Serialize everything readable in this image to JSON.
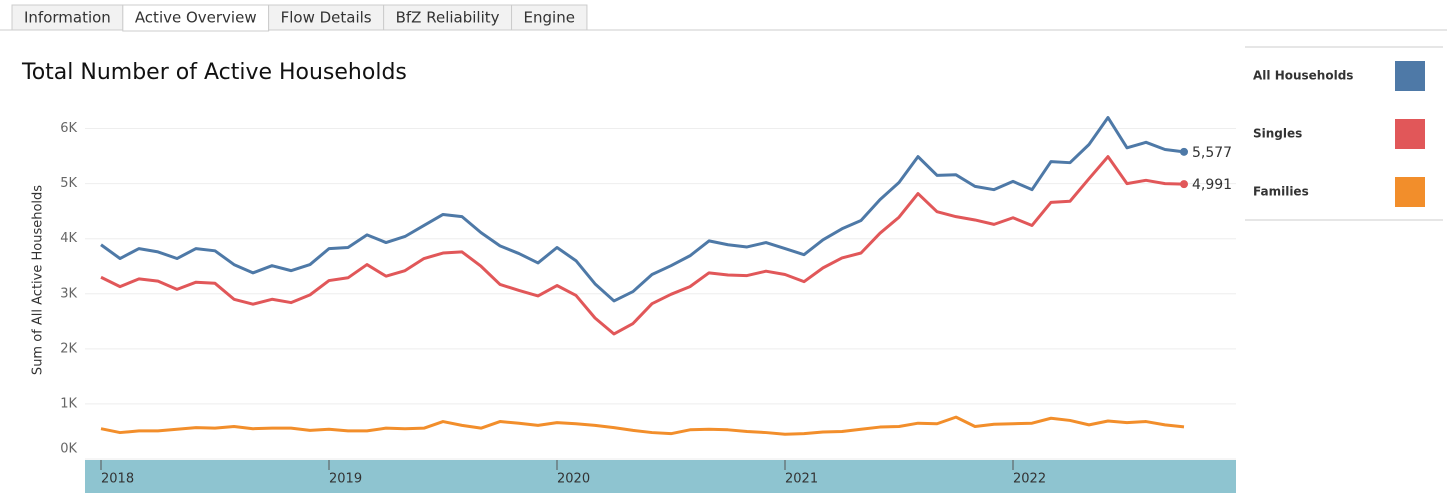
{
  "tabs": [
    "Information",
    "Active Overview",
    "Flow Details",
    "BfZ Reliability",
    "Engine"
  ],
  "active_tab": 1,
  "chart_data": {
    "type": "line",
    "title": "Total Number of Active Households",
    "y_label": "Sum of All Active Households",
    "categories": [
      "2018",
      null,
      null,
      null,
      null,
      null,
      null,
      null,
      null,
      null,
      null,
      null,
      "2019",
      null,
      null,
      null,
      null,
      null,
      null,
      null,
      null,
      null,
      null,
      null,
      "2020",
      null,
      null,
      null,
      null,
      null,
      null,
      null,
      null,
      null,
      null,
      null,
      "2021",
      null,
      null,
      null,
      null,
      null,
      null,
      null,
      null,
      null,
      null,
      null,
      "2022",
      null,
      null,
      null,
      null,
      null,
      null,
      null,
      null,
      null
    ],
    "series": [
      {
        "name": "All Households",
        "color": "#4e79a7",
        "values": [
          3890,
          3640,
          3820,
          3760,
          3640,
          3820,
          3780,
          3530,
          3380,
          3510,
          3420,
          3530,
          3820,
          3840,
          4070,
          3930,
          4040,
          4240,
          4440,
          4400,
          4110,
          3870,
          3730,
          3560,
          3840,
          3600,
          3180,
          2870,
          3040,
          3350,
          3510,
          3690,
          3960,
          3890,
          3850,
          3930,
          3820,
          3710,
          3980,
          4180,
          4330,
          4710,
          5020,
          5490,
          5150,
          5160,
          4950,
          4890,
          5040,
          4890,
          5400,
          5380,
          5710,
          6200,
          5650,
          5750,
          5620,
          5577
        ],
        "value_labels": [
          null,
          null,
          null,
          null,
          null,
          null,
          null,
          null,
          null,
          null,
          null,
          null,
          null,
          null,
          null,
          null,
          null,
          null,
          null,
          null,
          null,
          null,
          null,
          null,
          null,
          null,
          null,
          null,
          null,
          null,
          null,
          null,
          null,
          null,
          null,
          null,
          null,
          null,
          null,
          null,
          null,
          null,
          null,
          null,
          null,
          null,
          null,
          null,
          null,
          null,
          null,
          null,
          null,
          null,
          null,
          null,
          null,
          "5,577"
        ]
      },
      {
        "name": "Singles",
        "color": "#e15759",
        "values": [
          3300,
          3130,
          3270,
          3230,
          3080,
          3210,
          3190,
          2900,
          2810,
          2900,
          2840,
          2980,
          3240,
          3290,
          3530,
          3320,
          3420,
          3640,
          3740,
          3760,
          3500,
          3170,
          3060,
          2960,
          3150,
          2970,
          2560,
          2270,
          2460,
          2820,
          2990,
          3130,
          3380,
          3340,
          3330,
          3410,
          3350,
          3220,
          3470,
          3650,
          3740,
          4100,
          4390,
          4820,
          4490,
          4400,
          4340,
          4260,
          4380,
          4240,
          4660,
          4680,
          5090,
          5490,
          5000,
          5060,
          5000,
          4991
        ],
        "value_labels": [
          null,
          null,
          null,
          null,
          null,
          null,
          null,
          null,
          null,
          null,
          null,
          null,
          null,
          null,
          null,
          null,
          null,
          null,
          null,
          null,
          null,
          null,
          null,
          null,
          null,
          null,
          null,
          null,
          null,
          null,
          null,
          null,
          null,
          null,
          null,
          null,
          null,
          null,
          null,
          null,
          null,
          null,
          null,
          null,
          null,
          null,
          null,
          null,
          null,
          null,
          null,
          null,
          null,
          null,
          null,
          null,
          null,
          "4,991"
        ]
      },
      {
        "name": "Families",
        "color": "#f28e2b",
        "values": [
          550,
          480,
          510,
          510,
          540,
          570,
          560,
          590,
          550,
          560,
          560,
          520,
          540,
          510,
          510,
          560,
          550,
          560,
          680,
          610,
          560,
          680,
          650,
          610,
          660,
          640,
          610,
          570,
          520,
          480,
          460,
          530,
          540,
          530,
          500,
          480,
          450,
          460,
          490,
          500,
          540,
          580,
          590,
          650,
          640,
          760,
          590,
          630,
          640,
          650,
          740,
          700,
          620,
          690,
          660,
          680,
          620,
          584
        ]
      }
    ],
    "ylim": [
      0,
      6500
    ],
    "yticks": [
      {
        "value": 0,
        "label": "0K"
      },
      {
        "value": 1000,
        "label": "1K"
      },
      {
        "value": 2000,
        "label": "2K"
      },
      {
        "value": 3000,
        "label": "3K"
      },
      {
        "value": 4000,
        "label": "4K"
      },
      {
        "value": 5000,
        "label": "5K"
      },
      {
        "value": 6000,
        "label": "6K"
      }
    ],
    "grid": true
  }
}
